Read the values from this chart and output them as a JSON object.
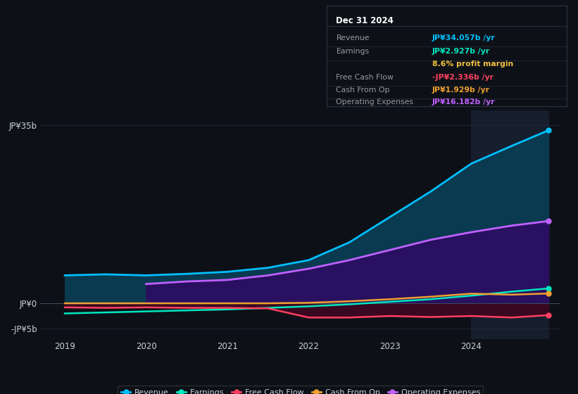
{
  "bg_color": "#0d1117",
  "plot_bg_color": "#0d1117",
  "grid_color": "#1e2733",
  "text_color": "#c9d1d9",
  "title_text": "Dec 31 2024",
  "ylim": [
    -7,
    38
  ],
  "yticks": [
    -5,
    0,
    35
  ],
  "ytick_labels": [
    "-JP¥5b",
    "JP¥0",
    "JP¥35b"
  ],
  "xticks": [
    2019,
    2020,
    2021,
    2022,
    2023,
    2024
  ],
  "info_box": {
    "title": "Dec 31 2024",
    "border_color": "#2a3545",
    "bg_color": "#0d1117",
    "rows": [
      {
        "label": "Revenue",
        "value": "JP¥34.057b /yr",
        "value_color": "#00bfff"
      },
      {
        "label": "Earnings",
        "value": "JP¥2.927b /yr",
        "value_color": "#00e8c0"
      },
      {
        "label": "",
        "value": "8.6% profit margin",
        "value_color": "#f0c040"
      },
      {
        "label": "Free Cash Flow",
        "value": "-JP¥2.336b /yr",
        "value_color": "#ff4060"
      },
      {
        "label": "Cash From Op",
        "value": "JP¥1.929b /yr",
        "value_color": "#f0a030"
      },
      {
        "label": "Operating Expenses",
        "value": "JP¥16.182b /yr",
        "value_color": "#c060ff"
      }
    ]
  },
  "series": {
    "Revenue": {
      "color": "#00bfff",
      "fill_color": "#0a3a50",
      "fill_alpha": 1.0,
      "linewidth": 2.0,
      "x": [
        2019.0,
        2019.5,
        2020.0,
        2020.5,
        2021.0,
        2021.5,
        2022.0,
        2022.5,
        2023.0,
        2023.5,
        2024.0,
        2024.5,
        2024.95
      ],
      "y": [
        5.5,
        5.7,
        5.5,
        5.8,
        6.2,
        7.0,
        8.5,
        12.0,
        17.0,
        22.0,
        27.5,
        31.0,
        34.057
      ]
    },
    "OperatingExpenses": {
      "color": "#c060ff",
      "fill_color": "#2a1060",
      "fill_alpha": 1.0,
      "linewidth": 2.0,
      "x": [
        2020.0,
        2020.5,
        2021.0,
        2021.5,
        2022.0,
        2022.5,
        2023.0,
        2023.5,
        2024.0,
        2024.5,
        2024.95
      ],
      "y": [
        3.8,
        4.3,
        4.6,
        5.5,
        6.8,
        8.5,
        10.5,
        12.5,
        14.0,
        15.3,
        16.182
      ]
    },
    "Earnings": {
      "color": "#00e8c0",
      "linewidth": 1.8,
      "x": [
        2019.0,
        2019.5,
        2020.0,
        2020.5,
        2021.0,
        2021.5,
        2022.0,
        2022.5,
        2023.0,
        2023.5,
        2024.0,
        2024.5,
        2024.95
      ],
      "y": [
        -2.0,
        -1.8,
        -1.6,
        -1.4,
        -1.2,
        -0.9,
        -0.6,
        -0.2,
        0.3,
        0.8,
        1.5,
        2.3,
        2.927
      ]
    },
    "FreeCashFlow": {
      "color": "#ff4060",
      "fill_color": "#3a0820",
      "fill_alpha": 1.0,
      "linewidth": 1.8,
      "x": [
        2019.0,
        2019.5,
        2020.0,
        2020.5,
        2021.0,
        2021.5,
        2022.0,
        2022.5,
        2023.0,
        2023.5,
        2024.0,
        2024.5,
        2024.95
      ],
      "y": [
        -0.8,
        -0.9,
        -0.8,
        -0.9,
        -0.9,
        -1.0,
        -2.8,
        -2.8,
        -2.5,
        -2.7,
        -2.5,
        -2.8,
        -2.336
      ]
    },
    "CashFromOp": {
      "color": "#f0a030",
      "linewidth": 1.8,
      "x": [
        2019.0,
        2019.5,
        2020.0,
        2020.5,
        2021.0,
        2021.5,
        2022.0,
        2022.5,
        2023.0,
        2023.5,
        2024.0,
        2024.5,
        2024.95
      ],
      "y": [
        0.0,
        0.0,
        0.0,
        0.0,
        0.0,
        0.0,
        0.1,
        0.4,
        0.8,
        1.3,
        1.9,
        1.7,
        1.929
      ]
    }
  },
  "legend": [
    {
      "label": "Revenue",
      "color": "#00bfff"
    },
    {
      "label": "Earnings",
      "color": "#00e8c0"
    },
    {
      "label": "Free Cash Flow",
      "color": "#ff4060"
    },
    {
      "label": "Cash From Op",
      "color": "#f0a030"
    },
    {
      "label": "Operating Expenses",
      "color": "#c060ff"
    }
  ],
  "shaded_region_start": 2024.0,
  "shaded_region_end": 2024.95,
  "x_min": 2018.7,
  "x_max": 2025.1
}
